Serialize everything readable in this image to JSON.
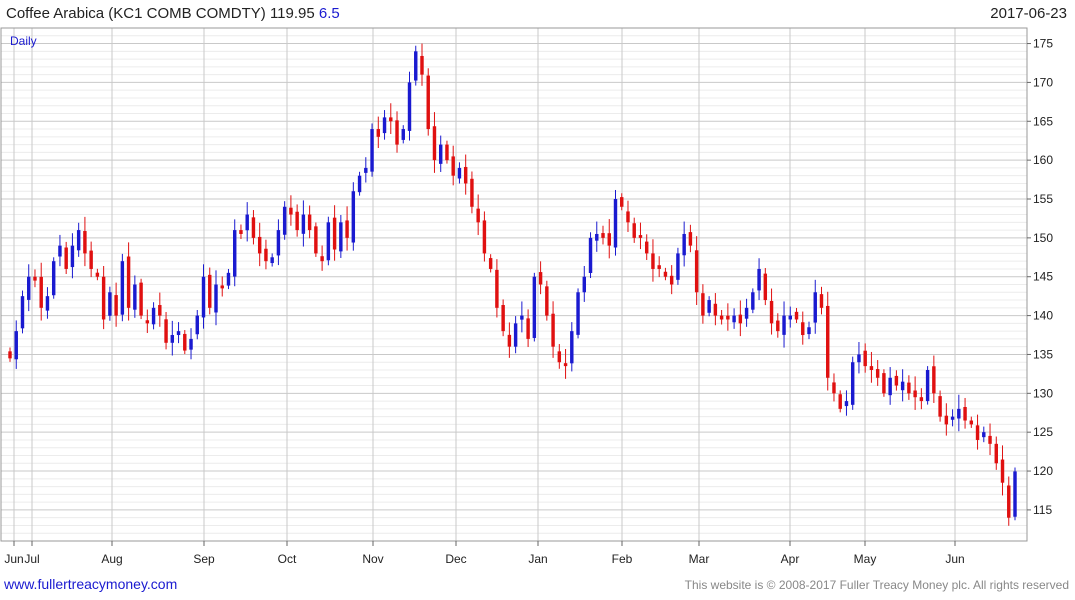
{
  "header": {
    "title": "Coffee Arabica  (KC1 COMB COMDTY) 119.95",
    "change": "6.5",
    "date": "2017-06-23"
  },
  "footer": {
    "left": "www.fullertreacymoney.com",
    "right": "This website is © 2008-2017 Fuller Treacy Money plc. All rights reserved"
  },
  "colors": {
    "up": "#1a1ad0",
    "down": "#e01010",
    "grid_major": "#c9c9c9",
    "grid_minor": "#ececec"
  },
  "chart_data": {
    "type": "candlestick",
    "period_label": "Daily",
    "y_axis": {
      "position": "right",
      "range": [
        111,
        177
      ],
      "ticks": [
        115,
        120,
        125,
        130,
        135,
        140,
        145,
        150,
        155,
        160,
        165,
        170,
        175
      ]
    },
    "x_ticks": [
      "Jun",
      "Jul",
      "Aug",
      "Sep",
      "Oct",
      "Nov",
      "Dec",
      "Jan",
      "Feb",
      "Mar",
      "Apr",
      "May",
      "Jun"
    ],
    "grid": true,
    "last_value": 119.95,
    "closes": [
      134.5,
      138,
      142.5,
      145,
      144.5,
      141,
      142.5,
      147,
      149,
      146,
      149,
      151,
      148,
      146,
      145,
      139.5,
      143,
      140,
      147,
      141,
      144,
      140,
      139,
      141,
      140,
      136.5,
      137.5,
      138,
      135.5,
      137,
      140,
      145,
      141,
      144,
      143.5,
      145.5,
      151,
      150.5,
      153,
      150,
      148,
      147,
      147.5,
      151,
      154,
      153,
      151,
      153,
      151,
      148,
      147,
      152,
      148.5,
      152,
      150,
      156,
      158,
      159,
      164,
      163,
      165.5,
      165,
      162,
      164,
      170,
      174,
      171,
      164,
      160,
      162,
      160,
      158,
      159,
      157,
      154,
      152,
      148,
      146,
      141,
      138,
      136,
      139,
      140,
      137,
      145,
      144,
      140,
      136,
      134,
      133.5,
      138,
      143,
      145,
      150,
      150.5,
      150,
      149,
      155,
      154,
      152,
      150,
      150,
      148,
      146,
      146,
      145,
      144,
      148,
      150.5,
      149,
      143,
      140,
      142,
      140,
      139.5,
      139.5,
      140,
      139,
      141,
      143,
      146,
      142,
      139,
      138,
      140,
      140,
      139.5,
      137.5,
      138.5,
      143,
      141,
      132,
      130,
      128,
      129,
      134,
      135,
      133.5,
      133,
      132,
      130,
      132,
      131,
      131.5,
      130,
      129.5,
      129,
      133,
      130,
      127,
      126,
      127,
      128,
      126.5,
      126,
      124,
      125,
      123.5,
      121,
      118.5,
      114,
      119.95
    ]
  }
}
